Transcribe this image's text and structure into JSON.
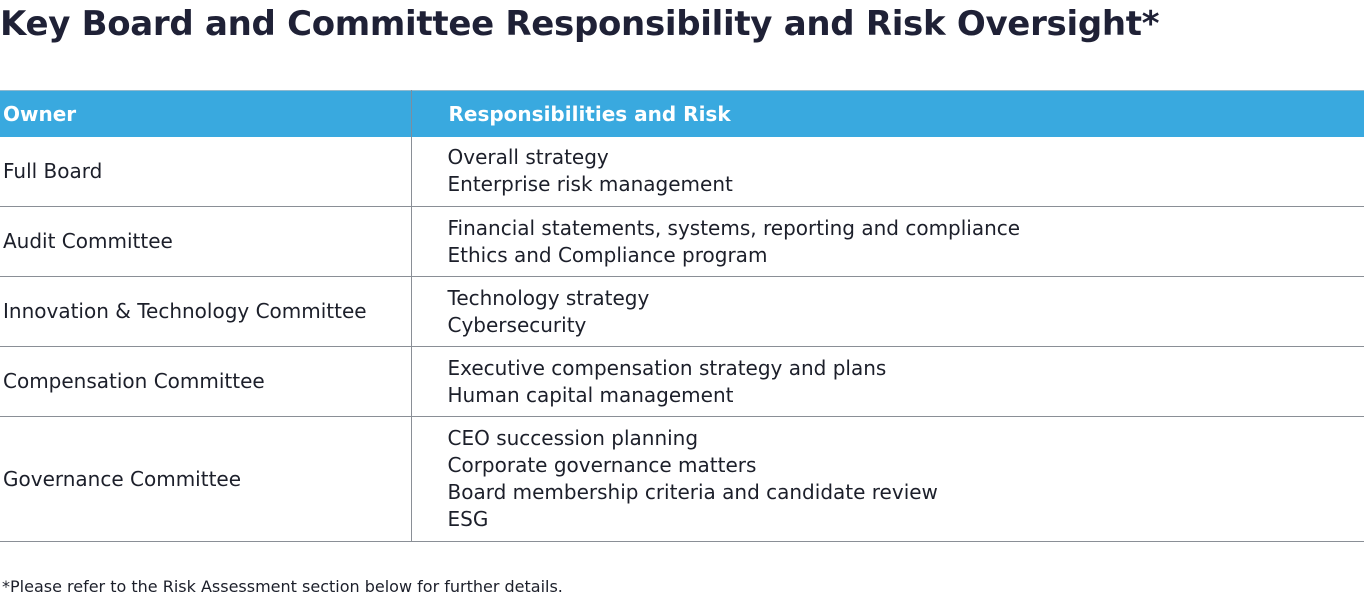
{
  "title": "Key Board and Committee Responsibility and Risk Oversight*",
  "table": {
    "headers": {
      "owner": "Owner",
      "responsibilities": "Responsibilities and Risk"
    },
    "rows": [
      {
        "owner": "Full Board",
        "items": [
          "Overall strategy",
          "Enterprise risk management"
        ]
      },
      {
        "owner": "Audit Committee",
        "items": [
          "Financial statements, systems, reporting and compliance",
          "Ethics and Compliance program"
        ]
      },
      {
        "owner": "Innovation & Technology Committee",
        "items": [
          "Technology strategy",
          "Cybersecurity"
        ]
      },
      {
        "owner": "Compensation Committee",
        "items": [
          "Executive compensation strategy and plans",
          "Human capital management"
        ]
      },
      {
        "owner": "Governance Committee",
        "items": [
          "CEO succession planning",
          "Corporate governance matters",
          "Board membership criteria and candidate review",
          "ESG"
        ]
      }
    ]
  },
  "footnote": "*Please refer to the Risk Assessment section below for further details.",
  "colors": {
    "header_bg": "#39a9df",
    "header_text": "#ffffff",
    "title_text": "#1f2136",
    "rule": "#8a8f96"
  }
}
